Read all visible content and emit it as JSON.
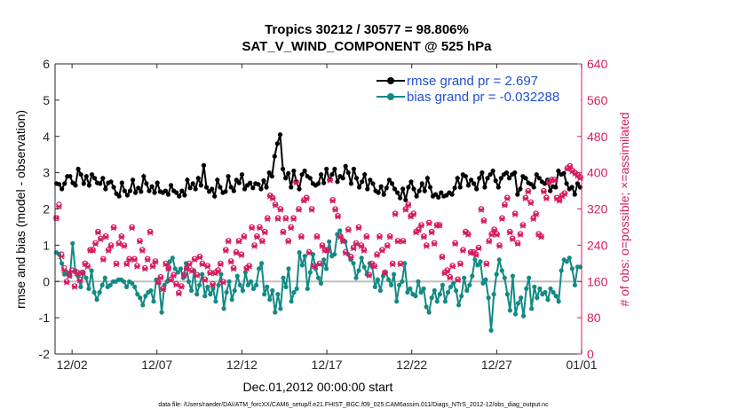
{
  "chart_data": {
    "type": "line",
    "title": "Tropics 30212 / 30577 = 98.806%",
    "subtitle": "SAT_V_WIND_COMPONENT @ 525 hPa",
    "xlabel": "Dec.01,2012 00:00:00 start",
    "ylabel_left": "rmse and bias (model - observation)",
    "ylabel_right": "# of obs: o=possible; ×=assimilated",
    "footnote": "data file: /Users/raeder/DAI/ATM_forcXX/CAM6_setup/f.e21.FHIST_BGC.f09_025.CAM6assim.011/Diags_NTrS_2012-12/obs_diag_output.nc",
    "xlim": [
      0,
      31
    ],
    "ylim_left": [
      -2,
      6
    ],
    "ylim_right": [
      0,
      640
    ],
    "x_ticks": [
      1,
      6,
      11,
      16,
      21,
      26,
      31
    ],
    "x_tick_labels": [
      "12/02",
      "12/07",
      "12/12",
      "12/17",
      "12/22",
      "12/27",
      "01/01"
    ],
    "y_left_ticks": [
      -2,
      -1,
      0,
      1,
      2,
      3,
      4,
      5,
      6
    ],
    "y_left_tick_labels": [
      "-2",
      "-1",
      "0",
      "1",
      "2",
      "3",
      "4",
      "5",
      "6"
    ],
    "y_right_ticks": [
      0,
      80,
      160,
      240,
      320,
      400,
      480,
      560,
      640
    ],
    "y_right_tick_labels": [
      "0",
      "80",
      "160",
      "240",
      "320",
      "400",
      "480",
      "560",
      "640"
    ],
    "zero_line": 0,
    "series": [
      {
        "name": "rmse grand pr = 2.697",
        "color": "#000000",
        "marker": "dot",
        "axis": "left",
        "values": [
          2.7,
          2.68,
          2.55,
          2.7,
          2.9,
          2.9,
          2.72,
          2.65,
          3.1,
          2.95,
          2.7,
          2.9,
          2.65,
          2.95,
          2.85,
          2.72,
          2.7,
          2.85,
          2.55,
          2.72,
          2.75,
          2.6,
          2.42,
          2.35,
          2.72,
          2.5,
          2.38,
          2.5,
          2.8,
          2.45,
          2.58,
          2.48,
          2.9,
          2.7,
          2.5,
          2.62,
          2.45,
          2.72,
          2.48,
          2.45,
          2.5,
          2.4,
          2.65,
          2.5,
          2.45,
          2.35,
          2.5,
          2.38,
          2.8,
          2.58,
          2.7,
          2.55,
          2.85,
          2.65,
          3.2,
          2.6,
          2.48,
          2.55,
          2.35,
          2.8,
          2.6,
          2.45,
          2.48,
          2.9,
          2.6,
          2.5,
          2.8,
          2.72,
          2.95,
          2.55,
          2.65,
          2.72,
          2.58,
          2.7,
          2.68,
          2.55,
          2.78,
          2.6,
          3.0,
          2.9,
          3.45,
          3.8,
          4.05,
          3.1,
          2.85,
          2.98,
          2.6,
          3.05,
          2.75,
          2.55,
          2.95,
          3.05,
          2.9,
          2.85,
          2.7,
          2.65,
          2.7,
          2.95,
          2.72,
          3.1,
          2.8,
          2.95,
          3.1,
          2.75,
          2.9,
          2.85,
          3.18,
          3.0,
          2.7,
          3.1,
          2.85,
          2.6,
          2.75,
          2.95,
          2.55,
          2.8,
          2.7,
          2.5,
          2.45,
          2.62,
          2.4,
          2.58,
          2.8,
          2.7,
          2.55,
          2.45,
          2.3,
          2.55,
          2.25,
          2.6,
          2.75,
          2.55,
          2.35,
          2.5,
          2.7,
          2.5,
          2.85,
          2.6,
          2.35,
          2.4,
          2.32,
          2.45,
          2.35,
          2.38,
          2.45,
          2.4,
          2.58,
          2.85,
          2.6,
          2.95,
          2.9,
          2.65,
          2.8,
          2.7,
          2.55,
          2.85,
          3.0,
          2.6,
          2.85,
          2.95,
          3.05,
          2.78,
          2.6,
          2.85,
          2.95,
          3.0,
          2.85,
          2.95,
          3.0,
          2.4,
          2.55,
          2.9,
          2.85,
          2.72,
          2.68,
          2.6,
          2.95,
          2.85,
          2.75,
          2.7,
          2.8,
          2.5,
          2.62,
          2.6,
          3.05,
          2.95,
          2.98,
          2.7,
          2.55,
          2.6,
          2.4,
          2.7,
          2.6
        ]
      },
      {
        "name": "bias grand pr = -0.032288",
        "color": "#138a84",
        "marker": "dot",
        "axis": "left",
        "values": [
          0.8,
          0.75,
          0.5,
          0.2,
          0.25,
          0.15,
          1.05,
          0.3,
          0.15,
          -0.15,
          0.25,
          0.1,
          -0.2,
          0.3,
          -0.3,
          -0.5,
          -0.3,
          -0.1,
          0.1,
          -0.15,
          -0.1,
          0.0,
          0.0,
          0.05,
          0.05,
          0.0,
          -0.15,
          0.0,
          -0.05,
          -0.15,
          -0.35,
          -0.45,
          -0.65,
          -0.4,
          -0.3,
          -0.25,
          -0.55,
          0.05,
          -0.05,
          -0.85,
          -0.1,
          0.0,
          0.55,
          0.65,
          0.35,
          0.25,
          0.35,
          0.1,
          0.5,
          0.0,
          -0.25,
          0.3,
          -0.35,
          -0.1,
          0.2,
          -0.4,
          -0.15,
          -0.35,
          -0.2,
          -0.55,
          -0.1,
          0.2,
          -0.75,
          -0.3,
          0.0,
          -0.5,
          -0.25,
          0.15,
          -0.1,
          -0.25,
          0.25,
          -0.1,
          0.0,
          -0.2,
          -0.1,
          0.35,
          0.5,
          -0.35,
          -0.15,
          -0.5,
          -0.25,
          -0.85,
          -0.35,
          -0.75,
          0.1,
          -0.15,
          0.35,
          -0.55,
          -0.3,
          -0.2,
          0.8,
          0.45,
          0.7,
          -0.2,
          0.25,
          0.75,
          0.35,
          0.1,
          -0.05,
          0.6,
          0.35,
          1.1,
          0.7,
          0.75,
          1.3,
          1.4,
          1.15,
          1.1,
          0.75,
          0.6,
          0.5,
          0.1,
          0.3,
          0.65,
          0.4,
          0.2,
          0.5,
          0.4,
          -0.15,
          0.05,
          -0.25,
          0.15,
          0.25,
          0.05,
          -0.1,
          0.2,
          -0.55,
          -0.1,
          0.0,
          0.5,
          -0.3,
          -0.2,
          -0.35,
          -0.4,
          0.0,
          -0.3,
          -0.2,
          -0.7,
          -0.85,
          -0.45,
          -0.25,
          -0.55,
          -0.35,
          -0.1,
          -0.55,
          -0.3,
          -0.15,
          -0.05,
          -0.25,
          -0.65,
          -0.4,
          0.1,
          -0.25,
          -0.1,
          0.15,
          0.6,
          0.45,
          0.55,
          -0.05,
          0.05,
          -0.45,
          -1.35,
          -0.35,
          0.2,
          0.6,
          0.3,
          0.1,
          -0.35,
          -0.8,
          0.15,
          -0.9,
          -0.6,
          -0.45,
          -0.95,
          -0.2,
          0.1,
          -0.75,
          -0.15,
          -0.45,
          -0.2,
          -0.35,
          -0.3,
          -0.5,
          -0.2,
          -0.3,
          -0.4,
          -0.55,
          0.3,
          0.6,
          0.55,
          0.65,
          0.35,
          -0.1,
          0.4,
          0.4
        ]
      },
      {
        "name": "possible",
        "color": "#d81b60",
        "marker": "o",
        "axis": "right",
        "values": [
          300,
          330,
          220,
          190,
          160,
          175,
          185,
          150,
          180,
          165,
          180,
          200,
          195,
          230,
          230,
          245,
          270,
          255,
          210,
          260,
          230,
          240,
          280,
          200,
          245,
          260,
          240,
          200,
          210,
          280,
          210,
          195,
          250,
          230,
          190,
          210,
          270,
          195,
          205,
          160,
          170,
          145,
          200,
          190,
          165,
          175,
          155,
          135,
          150,
          175,
          190,
          200,
          185,
          210,
          175,
          215,
          200,
          165,
          195,
          180,
          155,
          180,
          185,
          200,
          160,
          230,
          250,
          205,
          190,
          225,
          250,
          220,
          260,
          190,
          195,
          280,
          240,
          260,
          280,
          250,
          270,
          300,
          350,
          345,
          330,
          300,
          320,
          270,
          300,
          250,
          280,
          300,
          380,
          320,
          260,
          340,
          345,
          225,
          320,
          195,
          260,
          200,
          240,
          230,
          230,
          385,
          340,
          320,
          305,
          260,
          250,
          225,
          275,
          215,
          235,
          245,
          280,
          240,
          230,
          260,
          175,
          200,
          195,
          220,
          260,
          230,
          180,
          240,
          260,
          200,
          310,
          250,
          200,
          250,
          320,
          330,
          305,
          310,
          270,
          275,
          285,
          260,
          240,
          290,
          270,
          245,
          285,
          285,
          215,
          180,
          185,
          170,
          195,
          245,
          165,
          200,
          230,
          270,
          265,
          225,
          225,
          220,
          235,
          320,
          295,
          200,
          250,
          265,
          275,
          265,
          240,
          300,
          330,
          345,
          270,
          255,
          310,
          245,
          265,
          285,
          345,
          360,
          335,
          300,
          310,
          265,
          260,
          360,
          345,
          380,
          385,
          385,
          345,
          340,
          350,
          355,
          410,
          415,
          405,
          400,
          395,
          390
        ]
      },
      {
        "name": "assimilated",
        "color": "#d81b60",
        "marker": "x",
        "axis": "right",
        "values": [
          300,
          325,
          215,
          185,
          158,
          172,
          182,
          148,
          178,
          162,
          178,
          198,
          192,
          228,
          228,
          243,
          268,
          253,
          208,
          258,
          228,
          238,
          278,
          198,
          243,
          258,
          238,
          198,
          208,
          278,
          208,
          193,
          248,
          228,
          188,
          208,
          268,
          193,
          203,
          158,
          168,
          143,
          198,
          188,
          163,
          173,
          153,
          133,
          148,
          173,
          188,
          198,
          183,
          208,
          173,
          213,
          198,
          163,
          193,
          178,
          153,
          178,
          183,
          198,
          158,
          228,
          248,
          203,
          188,
          223,
          248,
          218,
          258,
          188,
          193,
          278,
          238,
          258,
          278,
          248,
          268,
          298,
          348,
          343,
          328,
          298,
          318,
          268,
          298,
          248,
          278,
          298,
          378,
          318,
          258,
          338,
          343,
          223,
          318,
          193,
          258,
          198,
          238,
          228,
          228,
          383,
          338,
          318,
          303,
          258,
          248,
          223,
          273,
          213,
          233,
          243,
          278,
          238,
          228,
          258,
          173,
          198,
          193,
          218,
          258,
          228,
          178,
          238,
          258,
          198,
          308,
          248,
          198,
          248,
          318,
          328,
          303,
          308,
          268,
          273,
          283,
          258,
          238,
          288,
          268,
          243,
          283,
          283,
          213,
          178,
          183,
          168,
          193,
          243,
          163,
          198,
          228,
          268,
          263,
          223,
          223,
          218,
          233,
          318,
          293,
          198,
          248,
          263,
          273,
          263,
          238,
          298,
          328,
          343,
          268,
          253,
          308,
          243,
          263,
          283,
          343,
          358,
          333,
          298,
          308,
          263,
          258,
          358,
          343,
          378,
          383,
          383,
          343,
          338,
          348,
          353,
          408,
          413,
          403,
          398,
          393,
          388
        ]
      }
    ]
  }
}
